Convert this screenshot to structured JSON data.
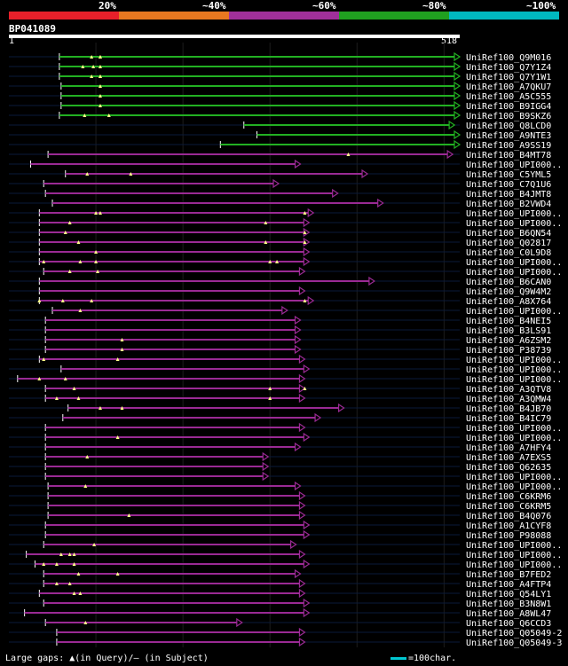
{
  "scale": {
    "labels": [
      "20%",
      "~40%",
      "~60%",
      "~80%",
      "~100%"
    ],
    "colors": [
      "#e8202a",
      "#e87820",
      "#a0309a",
      "#20a020",
      "#00b8c0"
    ]
  },
  "query": {
    "id": "BP041089",
    "start": "1",
    "end": "518",
    "length": 518
  },
  "hits": [
    {
      "label": "UniRef100_Q9M016",
      "color": "#22b022",
      "start": 58,
      "end": 518,
      "gaps": [
        95,
        105,
        105
      ]
    },
    {
      "label": "UniRef100_Q7Y1Z4",
      "color": "#22b022",
      "start": 58,
      "end": 518,
      "gaps": [
        85,
        97,
        105
      ]
    },
    {
      "label": "UniRef100_Q7Y1W1",
      "color": "#22b022",
      "start": 58,
      "end": 518,
      "gaps": [
        95,
        105,
        105
      ]
    },
    {
      "label": "UniRef100_A7QKU7",
      "color": "#22b022",
      "start": 60,
      "end": 518,
      "gaps": [
        105
      ]
    },
    {
      "label": "UniRef100_A5C555",
      "color": "#22b022",
      "start": 60,
      "end": 518,
      "gaps": [
        105
      ]
    },
    {
      "label": "UniRef100_B9IGG4",
      "color": "#22b022",
      "start": 60,
      "end": 518,
      "gaps": [
        105
      ]
    },
    {
      "label": "UniRef100_B9SKZ6",
      "color": "#22b022",
      "start": 58,
      "end": 518,
      "gaps": [
        87,
        115
      ]
    },
    {
      "label": "UniRef100_Q8LCD0",
      "color": "#22b022",
      "start": 270,
      "end": 512,
      "gaps": []
    },
    {
      "label": "UniRef100_A9NTE3",
      "color": "#22b022",
      "start": 285,
      "end": 518,
      "gaps": []
    },
    {
      "label": "UniRef100_A9SS19",
      "color": "#22b022",
      "start": 243,
      "end": 518,
      "gaps": []
    },
    {
      "label": "UniRef100_B4MT78",
      "color": "#9a2a94",
      "start": 45,
      "end": 510,
      "gaps": [
        390
      ]
    },
    {
      "label": "UniRef100_UPI000..",
      "color": "#9a2a94",
      "start": 25,
      "end": 335,
      "gaps": []
    },
    {
      "label": "UniRef100_C5YML5",
      "color": "#9a2a94",
      "start": 65,
      "end": 412,
      "gaps": [
        90,
        140
      ]
    },
    {
      "label": "UniRef100_C7Q1U6",
      "color": "#9a2a94",
      "start": 40,
      "end": 310,
      "gaps": []
    },
    {
      "label": "UniRef100_B4JMT8",
      "color": "#9a2a94",
      "start": 42,
      "end": 378,
      "gaps": []
    },
    {
      "label": "UniRef100_B2VWD4",
      "color": "#9a2a94",
      "start": 50,
      "end": 430,
      "gaps": []
    },
    {
      "label": "UniRef100_UPI000..",
      "color": "#9a2a94",
      "start": 35,
      "end": 350,
      "gaps": [
        100,
        105,
        340
      ]
    },
    {
      "label": "UniRef100_UPI000..",
      "color": "#9a2a94",
      "start": 35,
      "end": 345,
      "gaps": [
        70,
        295
      ]
    },
    {
      "label": "UniRef100_B6QN54",
      "color": "#9a2a94",
      "start": 35,
      "end": 345,
      "gaps": [
        65,
        340
      ]
    },
    {
      "label": "UniRef100_Q02817",
      "color": "#9a2a94",
      "start": 35,
      "end": 345,
      "gaps": [
        80,
        295,
        340
      ]
    },
    {
      "label": "UniRef100_C0L9D8",
      "color": "#9a2a94",
      "start": 35,
      "end": 345,
      "gaps": [
        100
      ]
    },
    {
      "label": "UniRef100_UPI000..",
      "color": "#9a2a94",
      "start": 35,
      "end": 345,
      "gaps": [
        40,
        82,
        100,
        300,
        308
      ]
    },
    {
      "label": "UniRef100_UPI000..",
      "color": "#9a2a94",
      "start": 40,
      "end": 340,
      "gaps": [
        70,
        102
      ]
    },
    {
      "label": "UniRef100_B6CAN0",
      "color": "#9a2a94",
      "start": 35,
      "end": 420,
      "gaps": []
    },
    {
      "label": "UniRef100_Q9W4M2",
      "color": "#9a2a94",
      "start": 35,
      "end": 340,
      "gaps": []
    },
    {
      "label": "UniRef100_A8X764",
      "color": "#9a2a94",
      "start": 35,
      "end": 350,
      "gaps": [
        35,
        62,
        95,
        340
      ]
    },
    {
      "label": "UniRef100_UPI000..",
      "color": "#9a2a94",
      "start": 50,
      "end": 320,
      "gaps": [
        82
      ]
    },
    {
      "label": "UniRef100_B4NEI5",
      "color": "#9a2a94",
      "start": 42,
      "end": 335,
      "gaps": []
    },
    {
      "label": "UniRef100_B3LS91",
      "color": "#9a2a94",
      "start": 42,
      "end": 335,
      "gaps": []
    },
    {
      "label": "UniRef100_A6ZSM2",
      "color": "#9a2a94",
      "start": 42,
      "end": 335,
      "gaps": [
        130
      ]
    },
    {
      "label": "UniRef100_P38739",
      "color": "#9a2a94",
      "start": 42,
      "end": 335,
      "gaps": [
        130
      ]
    },
    {
      "label": "UniRef100_UPI000..",
      "color": "#9a2a94",
      "start": 35,
      "end": 340,
      "gaps": [
        40,
        125
      ]
    },
    {
      "label": "UniRef100_UPI000..",
      "color": "#9a2a94",
      "start": 60,
      "end": 345,
      "gaps": []
    },
    {
      "label": "UniRef100_UPI000..",
      "color": "#9a2a94",
      "start": 10,
      "end": 340,
      "gaps": [
        35,
        65
      ]
    },
    {
      "label": "UniRef100_A3QTV8",
      "color": "#9a2a94",
      "start": 42,
      "end": 340,
      "gaps": [
        75,
        300,
        340
      ]
    },
    {
      "label": "UniRef100_A3QMW4",
      "color": "#9a2a94",
      "start": 42,
      "end": 340,
      "gaps": [
        55,
        80,
        300
      ]
    },
    {
      "label": "UniRef100_B4JB70",
      "color": "#9a2a94",
      "start": 68,
      "end": 385,
      "gaps": [
        105,
        130
      ]
    },
    {
      "label": "UniRef100_B4IC79",
      "color": "#9a2a94",
      "start": 62,
      "end": 358,
      "gaps": []
    },
    {
      "label": "UniRef100_UPI000..",
      "color": "#9a2a94",
      "start": 42,
      "end": 340,
      "gaps": []
    },
    {
      "label": "UniRef100_UPI000..",
      "color": "#9a2a94",
      "start": 42,
      "end": 345,
      "gaps": [
        125
      ]
    },
    {
      "label": "UniRef100_A7HFY4",
      "color": "#9a2a94",
      "start": 42,
      "end": 335,
      "gaps": []
    },
    {
      "label": "UniRef100_A7EXS5",
      "color": "#9a2a94",
      "start": 42,
      "end": 298,
      "gaps": [
        90
      ]
    },
    {
      "label": "UniRef100_Q62635",
      "color": "#9a2a94",
      "start": 42,
      "end": 298,
      "gaps": []
    },
    {
      "label": "UniRef100_UPI000..",
      "color": "#9a2a94",
      "start": 42,
      "end": 298,
      "gaps": []
    },
    {
      "label": "UniRef100_UPI000..",
      "color": "#9a2a94",
      "start": 45,
      "end": 335,
      "gaps": [
        88
      ]
    },
    {
      "label": "UniRef100_C6KRM6",
      "color": "#9a2a94",
      "start": 45,
      "end": 340,
      "gaps": []
    },
    {
      "label": "UniRef100_C6KRM5",
      "color": "#9a2a94",
      "start": 45,
      "end": 340,
      "gaps": []
    },
    {
      "label": "UniRef100_B4Q076",
      "color": "#9a2a94",
      "start": 45,
      "end": 340,
      "gaps": [
        138
      ]
    },
    {
      "label": "UniRef100_A1CYF8",
      "color": "#9a2a94",
      "start": 42,
      "end": 345,
      "gaps": []
    },
    {
      "label": "UniRef100_P98088",
      "color": "#9a2a94",
      "start": 42,
      "end": 345,
      "gaps": []
    },
    {
      "label": "UniRef100_UPI000..",
      "color": "#9a2a94",
      "start": 40,
      "end": 330,
      "gaps": [
        98
      ]
    },
    {
      "label": "UniRef100_UPI000..",
      "color": "#9a2a94",
      "start": 20,
      "end": 340,
      "gaps": [
        60,
        70,
        75
      ]
    },
    {
      "label": "UniRef100_UPI000..",
      "color": "#9a2a94",
      "start": 30,
      "end": 345,
      "gaps": [
        40,
        55,
        75
      ]
    },
    {
      "label": "UniRef100_B7FED2",
      "color": "#9a2a94",
      "start": 40,
      "end": 335,
      "gaps": [
        80,
        125
      ]
    },
    {
      "label": "UniRef100_A4FTP4",
      "color": "#9a2a94",
      "start": 40,
      "end": 340,
      "gaps": [
        55,
        70
      ]
    },
    {
      "label": "UniRef100_Q54LY1",
      "color": "#9a2a94",
      "start": 35,
      "end": 340,
      "gaps": [
        75,
        82
      ]
    },
    {
      "label": "UniRef100_B3N8W1",
      "color": "#9a2a94",
      "start": 40,
      "end": 345,
      "gaps": []
    },
    {
      "label": "UniRef100_A8WL47",
      "color": "#9a2a94",
      "start": 18,
      "end": 345,
      "gaps": []
    },
    {
      "label": "UniRef100_Q6CCD3",
      "color": "#9a2a94",
      "start": 42,
      "end": 268,
      "gaps": [
        88
      ]
    },
    {
      "label": "UniRef100_Q05049-2",
      "color": "#9a2a94",
      "start": 55,
      "end": 340,
      "gaps": []
    },
    {
      "label": "UniRef100_Q05049-3",
      "color": "#9a2a94",
      "start": 55,
      "end": 340,
      "gaps": []
    }
  ],
  "footer": {
    "text": "Large gaps: ▲(in Query)/– (in Subject)",
    "scale_text": "=100char."
  }
}
